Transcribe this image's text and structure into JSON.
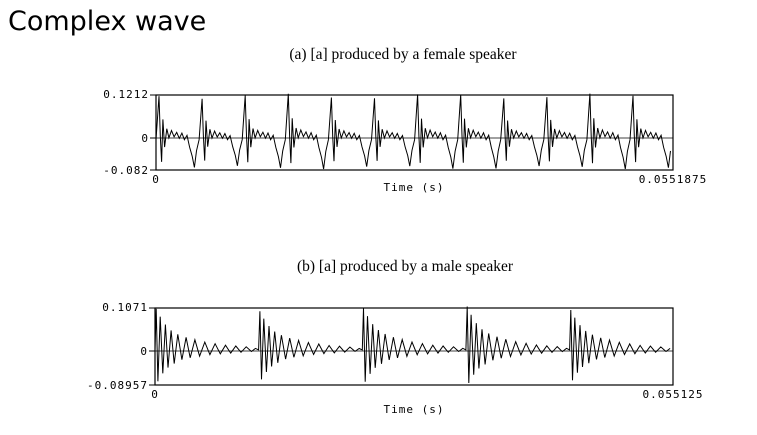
{
  "slide": {
    "title": "Complex wave"
  },
  "chart_data": [
    {
      "type": "line",
      "title": "(a) [a] produced by a female speaker",
      "xlabel": "Time (s)",
      "ylabel": "",
      "xlim": [
        0,
        0.0551875
      ],
      "ylim": [
        -0.082,
        0.1212
      ],
      "x_tick_labels": [
        "0",
        "0.0551875"
      ],
      "y_tick_labels": [
        "0.1212",
        "0",
        "-0.082"
      ],
      "cycles": 12,
      "period_s": 0.0046,
      "cycle_template": [
        [
          0.0,
          0.0
        ],
        [
          0.07,
          0.118
        ],
        [
          0.1,
          0.01
        ],
        [
          0.13,
          -0.06
        ],
        [
          0.16,
          0.055
        ],
        [
          0.2,
          -0.02
        ],
        [
          0.25,
          0.03
        ],
        [
          0.3,
          0.005
        ],
        [
          0.36,
          0.025
        ],
        [
          0.42,
          0.008
        ],
        [
          0.48,
          0.02
        ],
        [
          0.54,
          0.004
        ],
        [
          0.6,
          0.018
        ],
        [
          0.66,
          0.0
        ],
        [
          0.72,
          0.012
        ],
        [
          0.78,
          -0.02
        ],
        [
          0.84,
          -0.045
        ],
        [
          0.89,
          -0.075
        ],
        [
          0.94,
          -0.03
        ],
        [
          1.0,
          0.0
        ]
      ]
    },
    {
      "type": "line",
      "title": "(b) [a] produced by a male speaker",
      "xlabel": "Time (s)",
      "ylabel": "",
      "xlim": [
        0,
        0.055125
      ],
      "ylim": [
        -0.08957,
        0.1071
      ],
      "x_tick_labels": [
        "0",
        "0.055125"
      ],
      "y_tick_labels": [
        "0.1071",
        "0",
        "-0.08957"
      ],
      "cycles": 5,
      "period_s": 0.01103,
      "cycle_template": [
        [
          0.0,
          0.0
        ],
        [
          0.012,
          0.105
        ],
        [
          0.028,
          -0.08
        ],
        [
          0.05,
          0.085
        ],
        [
          0.075,
          -0.06
        ],
        [
          0.1,
          0.065
        ],
        [
          0.125,
          -0.045
        ],
        [
          0.155,
          0.05
        ],
        [
          0.185,
          -0.035
        ],
        [
          0.22,
          0.04
        ],
        [
          0.26,
          -0.025
        ],
        [
          0.3,
          0.032
        ],
        [
          0.34,
          -0.02
        ],
        [
          0.385,
          0.026
        ],
        [
          0.43,
          -0.016
        ],
        [
          0.48,
          0.02
        ],
        [
          0.53,
          -0.012
        ],
        [
          0.58,
          0.016
        ],
        [
          0.63,
          -0.01
        ],
        [
          0.68,
          0.012
        ],
        [
          0.73,
          -0.008
        ],
        [
          0.78,
          0.01
        ],
        [
          0.83,
          -0.006
        ],
        [
          0.88,
          0.008
        ],
        [
          0.93,
          -0.004
        ],
        [
          0.97,
          0.004
        ],
        [
          1.0,
          0.0
        ]
      ]
    }
  ]
}
